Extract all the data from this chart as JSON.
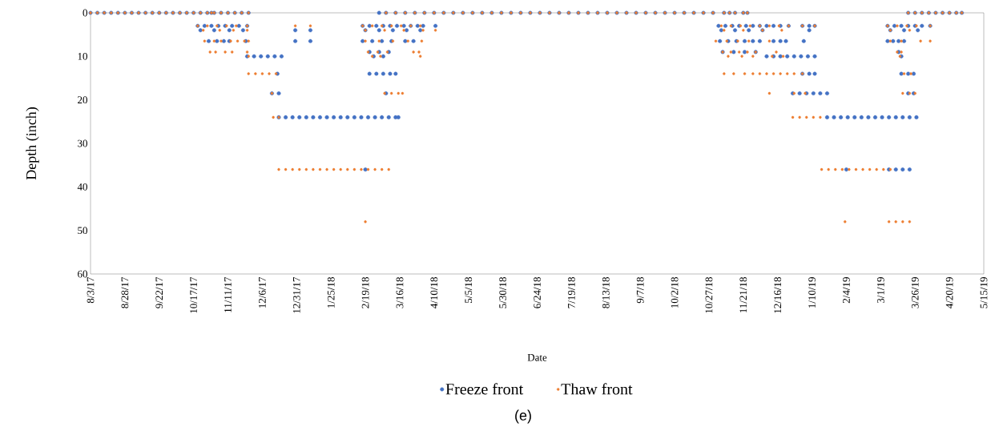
{
  "chart_data": {
    "type": "scatter",
    "xlabel": "Date",
    "ylabel": "Depth (inch)",
    "annotations": [
      "(e)"
    ],
    "xlim": [
      "2017-08-03",
      "2019-05-15"
    ],
    "ylim": [
      60,
      0
    ],
    "yticks": [
      0,
      10,
      20,
      30,
      40,
      50,
      60
    ],
    "xticks": [
      {
        "value": "2017-08-03",
        "label": "8/3/17"
      },
      {
        "value": "2017-08-28",
        "label": "8/28/17"
      },
      {
        "value": "2017-09-22",
        "label": "9/22/17"
      },
      {
        "value": "2017-10-17",
        "label": "10/17/17"
      },
      {
        "value": "2017-11-11",
        "label": "11/11/17"
      },
      {
        "value": "2017-12-06",
        "label": "12/6/17"
      },
      {
        "value": "2017-12-31",
        "label": "12/31/17"
      },
      {
        "value": "2018-01-25",
        "label": "1/25/18"
      },
      {
        "value": "2018-02-19",
        "label": "2/19/18"
      },
      {
        "value": "2018-03-16",
        "label": "3/16/18"
      },
      {
        "value": "2018-04-10",
        "label": "4/10/18"
      },
      {
        "value": "2018-05-05",
        "label": "5/5/18"
      },
      {
        "value": "2018-05-30",
        "label": "5/30/18"
      },
      {
        "value": "2018-06-24",
        "label": "6/24/18"
      },
      {
        "value": "2018-07-19",
        "label": "7/19/18"
      },
      {
        "value": "2018-08-13",
        "label": "8/13/18"
      },
      {
        "value": "2018-09-07",
        "label": "9/7/18"
      },
      {
        "value": "2018-10-02",
        "label": "10/2/18"
      },
      {
        "value": "2018-10-27",
        "label": "10/27/18"
      },
      {
        "value": "2018-11-21",
        "label": "11/21/18"
      },
      {
        "value": "2018-12-16",
        "label": "12/16/18"
      },
      {
        "value": "2019-01-10",
        "label": "1/10/19"
      },
      {
        "value": "2019-02-04",
        "label": "2/4/19"
      },
      {
        "value": "2019-03-01",
        "label": "3/1/19"
      },
      {
        "value": "2019-03-26",
        "label": "3/26/19"
      },
      {
        "value": "2019-04-20",
        "label": "4/20/19"
      },
      {
        "value": "2019-05-15",
        "label": "5/15/19"
      }
    ],
    "legend": "bottom",
    "marker": "circle",
    "series": [
      {
        "name": "Freeze front",
        "color": "#4472c4",
        "x": [
          "2017-08-03",
          "2017-08-08",
          "2017-08-13",
          "2017-08-18",
          "2017-08-23",
          "2017-08-28",
          "2017-09-02",
          "2017-09-07",
          "2017-09-12",
          "2017-09-17",
          "2017-09-22",
          "2017-09-27",
          "2017-10-02",
          "2017-10-07",
          "2017-10-12",
          "2017-10-17",
          "2017-10-22",
          "2017-10-27",
          "2017-10-30",
          "2017-11-01",
          "2017-11-06",
          "2017-11-11",
          "2017-11-16",
          "2017-11-21",
          "2017-11-26",
          "2018-03-01",
          "2018-03-06",
          "2018-03-13",
          "2018-03-20",
          "2018-03-27",
          "2018-04-03",
          "2018-04-10",
          "2018-04-17",
          "2018-04-24",
          "2018-05-01",
          "2018-05-08",
          "2018-05-15",
          "2018-05-22",
          "2018-05-29",
          "2018-06-05",
          "2018-06-12",
          "2018-06-19",
          "2018-06-26",
          "2018-07-03",
          "2018-07-10",
          "2018-07-17",
          "2018-07-24",
          "2018-07-31",
          "2018-08-07",
          "2018-08-14",
          "2018-08-21",
          "2018-08-28",
          "2018-09-04",
          "2018-09-11",
          "2018-09-18",
          "2018-09-25",
          "2018-10-02",
          "2018-10-09",
          "2018-10-16",
          "2018-10-23",
          "2018-10-30",
          "2018-11-07",
          "2018-11-11",
          "2018-11-15",
          "2018-11-21",
          "2018-11-24",
          "2019-03-21",
          "2019-03-26",
          "2019-03-31",
          "2019-04-05",
          "2019-04-10",
          "2019-04-15",
          "2019-04-20",
          "2019-04-25",
          "2019-04-29",
          "2017-10-20",
          "2017-10-25",
          "2017-10-30",
          "2017-11-04",
          "2017-11-09",
          "2017-11-14",
          "2017-11-19",
          "2017-11-25",
          "2018-02-17",
          "2018-02-22",
          "2018-02-27",
          "2018-03-04",
          "2018-03-09",
          "2018-03-14",
          "2018-03-19",
          "2018-03-24",
          "2018-03-29",
          "2018-04-02",
          "2018-04-11",
          "2018-11-03",
          "2018-11-08",
          "2018-11-13",
          "2018-11-18",
          "2018-11-23",
          "2018-11-28",
          "2018-12-03",
          "2018-12-08",
          "2018-12-13",
          "2018-12-18",
          "2018-12-24",
          "2019-01-03",
          "2019-01-08",
          "2019-01-12",
          "2019-03-06",
          "2019-03-11",
          "2019-03-16",
          "2019-03-21",
          "2019-03-26",
          "2019-03-31",
          "2019-04-06",
          "2017-10-22",
          "2017-11-01",
          "2017-11-12",
          "2017-11-22",
          "2017-12-30",
          "2018-01-10",
          "2018-02-19",
          "2018-03-01",
          "2018-03-11",
          "2018-03-21",
          "2018-03-31",
          "2018-11-05",
          "2018-11-15",
          "2018-11-25",
          "2018-12-05",
          "2019-01-08",
          "2019-03-08",
          "2019-03-18",
          "2019-03-28",
          "2017-10-28",
          "2017-11-03",
          "2017-11-08",
          "2017-11-12",
          "2017-11-24",
          "2017-12-30",
          "2018-01-10",
          "2018-02-17",
          "2018-02-24",
          "2018-03-03",
          "2018-03-10",
          "2018-03-20",
          "2018-03-26",
          "2018-11-04",
          "2018-11-10",
          "2018-11-16",
          "2018-11-22",
          "2018-11-28",
          "2018-12-03",
          "2018-12-13",
          "2018-12-18",
          "2018-12-22",
          "2019-01-04",
          "2019-03-06",
          "2019-03-10",
          "2019-03-14",
          "2019-03-18",
          "2018-02-22",
          "2018-03-01",
          "2018-03-08",
          "2018-11-06",
          "2018-11-14",
          "2018-11-22",
          "2018-11-30",
          "2019-03-14",
          "2017-11-25",
          "2017-11-30",
          "2017-12-05",
          "2017-12-10",
          "2017-12-15",
          "2017-12-20",
          "2018-02-25",
          "2018-03-04",
          "2018-12-08",
          "2018-12-13",
          "2018-12-18",
          "2018-12-23",
          "2018-12-28",
          "2019-01-02",
          "2019-01-07",
          "2019-01-12",
          "2019-03-16",
          "2017-12-17",
          "2018-02-22",
          "2018-02-27",
          "2018-03-04",
          "2018-03-09",
          "2018-03-13",
          "2019-01-03",
          "2019-01-08",
          "2019-01-12",
          "2019-03-16",
          "2019-03-21",
          "2019-03-25",
          "2017-12-13",
          "2017-12-18",
          "2018-03-06",
          "2018-12-27",
          "2019-01-01",
          "2019-01-06",
          "2019-01-11",
          "2019-01-16",
          "2019-01-21",
          "2019-03-21",
          "2019-03-25",
          "2017-12-18",
          "2017-12-23",
          "2017-12-28",
          "2018-01-02",
          "2018-01-07",
          "2018-01-12",
          "2018-01-17",
          "2018-01-22",
          "2018-01-27",
          "2018-02-01",
          "2018-02-06",
          "2018-02-11",
          "2018-02-16",
          "2018-02-21",
          "2018-02-26",
          "2018-03-03",
          "2018-03-08",
          "2018-03-13",
          "2018-03-15",
          "2019-01-21",
          "2019-01-26",
          "2019-01-31",
          "2019-02-05",
          "2019-02-10",
          "2019-02-15",
          "2019-02-20",
          "2019-02-25",
          "2019-03-02",
          "2019-03-07",
          "2019-03-12",
          "2019-03-17",
          "2019-03-22",
          "2019-03-27",
          "2018-02-19",
          "2019-02-04",
          "2019-03-07",
          "2019-03-12",
          "2019-03-17",
          "2019-03-22"
        ],
        "values": [
          0,
          0,
          0,
          0,
          0,
          0,
          0,
          0,
          0,
          0,
          0,
          0,
          0,
          0,
          0,
          0,
          0,
          0,
          0,
          0,
          0,
          0,
          0,
          0,
          0,
          0,
          0,
          0,
          0,
          0,
          0,
          0,
          0,
          0,
          0,
          0,
          0,
          0,
          0,
          0,
          0,
          0,
          0,
          0,
          0,
          0,
          0,
          0,
          0,
          0,
          0,
          0,
          0,
          0,
          0,
          0,
          0,
          0,
          0,
          0,
          0,
          0,
          0,
          0,
          0,
          0,
          0,
          0,
          0,
          0,
          0,
          0,
          0,
          0,
          0,
          3,
          3,
          3,
          3,
          3,
          3,
          3,
          3,
          3,
          3,
          3,
          3,
          3,
          3,
          3,
          3,
          3,
          3,
          3,
          3,
          3,
          3,
          3,
          3,
          3,
          3,
          3,
          3,
          3,
          3,
          3,
          3,
          3,
          3,
          3,
          3,
          3,
          3,
          3,
          3,
          4,
          4,
          4,
          4,
          4,
          4,
          4,
          4,
          4,
          4,
          4,
          4,
          4,
          4,
          4,
          4,
          4,
          4,
          4,
          6.5,
          6.5,
          6.5,
          6.5,
          6.5,
          6.5,
          6.5,
          6.5,
          6.5,
          6.5,
          6.5,
          6.5,
          6.5,
          6.5,
          6.5,
          6.5,
          6.5,
          6.5,
          6.5,
          6.5,
          6.5,
          6.5,
          6.5,
          6.5,
          6.5,
          6.5,
          6.5,
          9,
          9,
          9,
          9,
          9,
          9,
          9,
          9,
          10,
          10,
          10,
          10,
          10,
          10,
          10,
          10,
          10,
          10,
          10,
          10,
          10,
          10,
          10,
          10,
          10,
          14,
          14,
          14,
          14,
          14,
          14,
          14,
          14,
          14,
          14,
          14,
          14,
          18.5,
          18.5,
          18.5,
          18.5,
          18.5,
          18.5,
          18.5,
          18.5,
          18.5,
          18.5,
          18.5,
          24,
          24,
          24,
          24,
          24,
          24,
          24,
          24,
          24,
          24,
          24,
          24,
          24,
          24,
          24,
          24,
          24,
          24,
          24,
          24,
          24,
          24,
          24,
          24,
          24,
          24,
          24,
          24,
          24,
          24,
          24,
          24,
          24,
          36,
          36,
          36,
          36,
          36,
          36
        ]
      },
      {
        "name": "Thaw front",
        "color": "#ed7d31",
        "x": [
          "2017-08-03",
          "2017-08-08",
          "2017-08-13",
          "2017-08-18",
          "2017-08-23",
          "2017-08-28",
          "2017-09-02",
          "2017-09-07",
          "2017-09-12",
          "2017-09-17",
          "2017-09-22",
          "2017-09-27",
          "2017-10-02",
          "2017-10-07",
          "2017-10-12",
          "2017-10-17",
          "2017-10-22",
          "2017-10-27",
          "2017-10-30",
          "2017-11-01",
          "2017-11-06",
          "2017-11-11",
          "2017-11-16",
          "2017-11-21",
          "2017-11-26",
          "2018-03-06",
          "2018-03-13",
          "2018-03-20",
          "2018-03-27",
          "2018-04-03",
          "2018-04-10",
          "2018-04-17",
          "2018-04-24",
          "2018-05-01",
          "2018-05-08",
          "2018-05-15",
          "2018-05-22",
          "2018-05-29",
          "2018-06-05",
          "2018-06-12",
          "2018-06-19",
          "2018-06-26",
          "2018-07-03",
          "2018-07-10",
          "2018-07-17",
          "2018-07-24",
          "2018-07-31",
          "2018-08-07",
          "2018-08-14",
          "2018-08-21",
          "2018-08-28",
          "2018-09-04",
          "2018-09-11",
          "2018-09-18",
          "2018-09-25",
          "2018-10-02",
          "2018-10-09",
          "2018-10-16",
          "2018-10-23",
          "2018-10-30",
          "2018-11-07",
          "2018-11-11",
          "2018-11-15",
          "2018-11-21",
          "2018-11-24",
          "2019-03-21",
          "2019-03-26",
          "2019-03-31",
          "2019-04-05",
          "2019-04-10",
          "2019-04-15",
          "2019-04-20",
          "2019-04-25",
          "2019-04-29",
          "2017-10-20",
          "2017-10-27",
          "2017-11-03",
          "2017-11-10",
          "2017-11-17",
          "2017-11-25",
          "2017-12-30",
          "2018-01-10",
          "2018-02-17",
          "2018-02-24",
          "2018-03-03",
          "2018-03-10",
          "2018-03-17",
          "2018-03-24",
          "2018-03-31",
          "2018-11-05",
          "2018-11-12",
          "2018-11-19",
          "2018-11-26",
          "2018-12-03",
          "2018-12-10",
          "2018-12-17",
          "2018-12-24",
          "2019-01-03",
          "2019-01-12",
          "2019-03-06",
          "2019-03-13",
          "2019-03-20",
          "2019-03-27",
          "2019-04-06",
          "2017-10-24",
          "2017-11-05",
          "2017-11-15",
          "2017-11-25",
          "2018-02-19",
          "2018-03-05",
          "2018-03-19",
          "2018-04-02",
          "2018-04-11",
          "2018-11-07",
          "2018-11-21",
          "2018-12-05",
          "2018-12-19",
          "2019-03-08",
          "2019-03-22",
          "2017-10-25",
          "2017-11-01",
          "2017-11-06",
          "2017-11-13",
          "2017-11-18",
          "2017-11-23",
          "2017-11-26",
          "2018-02-19",
          "2018-03-01",
          "2018-03-11",
          "2018-03-22",
          "2018-04-01",
          "2018-11-01",
          "2018-11-09",
          "2018-11-17",
          "2018-11-25",
          "2018-12-10",
          "2019-03-08",
          "2019-03-16",
          "2019-03-30",
          "2019-04-06",
          "2017-10-29",
          "2017-11-02",
          "2017-11-09",
          "2017-11-14",
          "2017-11-25",
          "2018-02-21",
          "2018-02-28",
          "2018-03-07",
          "2018-03-26",
          "2018-03-30",
          "2018-11-06",
          "2018-11-12",
          "2018-11-18",
          "2018-11-24",
          "2018-11-30",
          "2018-12-15",
          "2019-03-13",
          "2019-03-16",
          "2017-11-26",
          "2018-02-24",
          "2018-03-02",
          "2018-03-31",
          "2018-11-10",
          "2018-11-20",
          "2018-11-28",
          "2018-12-12",
          "2018-12-20",
          "2019-03-15",
          "2017-11-26",
          "2017-12-01",
          "2017-12-06",
          "2017-12-11",
          "2017-12-16",
          "2018-11-07",
          "2018-11-14",
          "2018-11-22",
          "2018-11-28",
          "2018-12-03",
          "2018-12-08",
          "2018-12-13",
          "2018-12-18",
          "2018-12-23",
          "2018-12-28",
          "2019-01-03",
          "2019-03-18",
          "2019-03-23",
          "2017-12-13",
          "2018-03-05",
          "2018-03-10",
          "2018-03-15",
          "2018-03-18",
          "2018-12-10",
          "2018-12-28",
          "2019-01-05",
          "2019-03-17",
          "2019-03-22",
          "2019-03-26",
          "2017-12-14",
          "2017-12-18",
          "2018-12-27",
          "2019-01-01",
          "2019-01-06",
          "2019-01-11",
          "2019-01-16",
          "2017-12-18",
          "2017-12-23",
          "2017-12-28",
          "2018-01-02",
          "2018-01-07",
          "2018-01-12",
          "2018-01-17",
          "2018-01-22",
          "2018-01-27",
          "2018-02-01",
          "2018-02-06",
          "2018-02-11",
          "2018-02-16",
          "2018-02-21",
          "2018-02-26",
          "2018-03-03",
          "2018-03-08",
          "2019-01-17",
          "2019-01-22",
          "2019-01-27",
          "2019-02-01",
          "2019-02-06",
          "2019-02-11",
          "2019-02-16",
          "2019-02-21",
          "2019-02-26",
          "2019-03-03",
          "2019-03-08",
          "2018-02-19",
          "2019-02-03",
          "2019-03-07",
          "2019-03-12",
          "2019-03-17",
          "2019-03-22"
        ],
        "values": [
          0,
          0,
          0,
          0,
          0,
          0,
          0,
          0,
          0,
          0,
          0,
          0,
          0,
          0,
          0,
          0,
          0,
          0,
          0,
          0,
          0,
          0,
          0,
          0,
          0,
          0,
          0,
          0,
          0,
          0,
          0,
          0,
          0,
          0,
          0,
          0,
          0,
          0,
          0,
          0,
          0,
          0,
          0,
          0,
          0,
          0,
          0,
          0,
          0,
          0,
          0,
          0,
          0,
          0,
          0,
          0,
          0,
          0,
          0,
          0,
          0,
          0,
          0,
          0,
          0,
          0,
          0,
          0,
          0,
          0,
          0,
          0,
          0,
          0,
          3,
          3,
          3,
          3,
          3,
          3,
          3,
          3,
          3,
          3,
          3,
          3,
          3,
          3,
          3,
          3,
          3,
          3,
          3,
          3,
          3,
          3,
          3,
          3,
          3,
          3,
          3,
          3,
          3,
          3,
          4,
          4,
          4,
          4,
          4,
          4,
          4,
          4,
          4,
          4,
          4,
          4,
          4,
          4,
          4,
          6.5,
          6.5,
          6.5,
          6.5,
          6.5,
          6.5,
          6.5,
          6.5,
          6.5,
          6.5,
          6.5,
          6.5,
          6.5,
          6.5,
          6.5,
          6.5,
          6.5,
          6.5,
          6.5,
          6.5,
          6.5,
          9,
          9,
          9,
          9,
          9,
          9,
          9,
          9,
          9,
          9,
          9,
          9,
          9,
          9,
          9,
          9,
          9,
          9,
          10,
          10,
          10,
          10,
          10,
          10,
          10,
          10,
          10,
          10,
          14,
          14,
          14,
          14,
          14,
          14,
          14,
          14,
          14,
          14,
          14,
          14,
          14,
          14,
          14,
          14,
          14,
          14,
          18.5,
          18.5,
          18.5,
          18.5,
          18.5,
          18.5,
          18.5,
          18.5,
          18.5,
          18.5,
          18.5,
          24,
          24,
          24,
          24,
          24,
          24,
          24,
          36,
          36,
          36,
          36,
          36,
          36,
          36,
          36,
          36,
          36,
          36,
          36,
          36,
          36,
          36,
          36,
          36,
          36,
          36,
          36,
          36,
          36,
          36,
          36,
          36,
          36,
          36,
          36,
          48,
          48,
          48,
          48,
          48,
          48
        ]
      }
    ]
  }
}
